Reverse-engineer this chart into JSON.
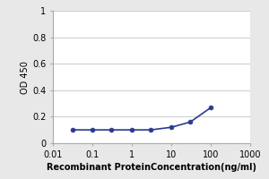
{
  "x_values": [
    0.031,
    0.1,
    0.3,
    1,
    3,
    10,
    30,
    100
  ],
  "y_values": [
    0.1,
    0.1,
    0.1,
    0.1,
    0.1,
    0.12,
    0.16,
    0.27
  ],
  "xlabel": "Recombinant ProteinConcentration(ng/ml)",
  "ylabel": "OD 450",
  "xlim": [
    0.01,
    1000
  ],
  "ylim": [
    0,
    1
  ],
  "yticks": [
    0,
    0.2,
    0.4,
    0.6,
    0.8,
    1
  ],
  "ytick_labels": [
    "0",
    "0.2",
    "0.4",
    "0.6",
    "0.8",
    "1"
  ],
  "xticks": [
    0.01,
    0.1,
    1,
    10,
    100,
    1000
  ],
  "xtick_labels": [
    "0.01",
    "0.1",
    "1",
    "10",
    "100",
    "1000"
  ],
  "line_color": "#2b3a8f",
  "marker": "o",
  "marker_size": 3.5,
  "marker_facecolor": "#2b3a8f",
  "line_width": 1.2,
  "bg_color": "#e8e8e8",
  "plot_bg_color": "#ffffff",
  "grid_color": "#d0d0d0",
  "xlabel_fontsize": 7,
  "ylabel_fontsize": 7,
  "tick_fontsize": 7
}
